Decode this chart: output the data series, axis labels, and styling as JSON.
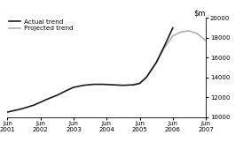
{
  "ylim": [
    10000,
    20000
  ],
  "yticks": [
    10000,
    12000,
    14000,
    16000,
    18000,
    20000
  ],
  "actual_x": [
    2001.0,
    2001.2,
    2001.4,
    2001.6,
    2001.8,
    2002.0,
    2002.2,
    2002.5,
    2002.8,
    2003.0,
    2003.3,
    2003.6,
    2003.9,
    2004.2,
    2004.5,
    2004.8,
    2005.0,
    2005.2,
    2005.5,
    2005.75,
    2006.0
  ],
  "actual_y": [
    10500,
    10650,
    10800,
    11000,
    11200,
    11500,
    11800,
    12200,
    12700,
    13000,
    13200,
    13300,
    13300,
    13250,
    13200,
    13250,
    13400,
    14000,
    15500,
    17200,
    19000
  ],
  "projected_x": [
    2004.8,
    2005.0,
    2005.2,
    2005.5,
    2005.75,
    2006.0,
    2006.25,
    2006.5,
    2006.75,
    2007.0
  ],
  "projected_y": [
    13200,
    13400,
    14000,
    15500,
    17000,
    18200,
    18600,
    18700,
    18400,
    17700
  ],
  "actual_color": "#1a1a1a",
  "projected_color": "#b0b0b0",
  "background_color": "#ffffff",
  "xticks": [
    2001.0,
    2002.0,
    2003.0,
    2004.0,
    2005.0,
    2006.0,
    2007.0
  ],
  "xtick_labels": [
    "Jun\n2001",
    "Jun\n2002",
    "Jun\n2003",
    "Jun\n2004",
    "Jun\n2005",
    "Jun\n2006",
    "Jun\n2007"
  ],
  "legend_actual": "Actual trend",
  "legend_projected": "Projected trend",
  "line_width": 1.2
}
